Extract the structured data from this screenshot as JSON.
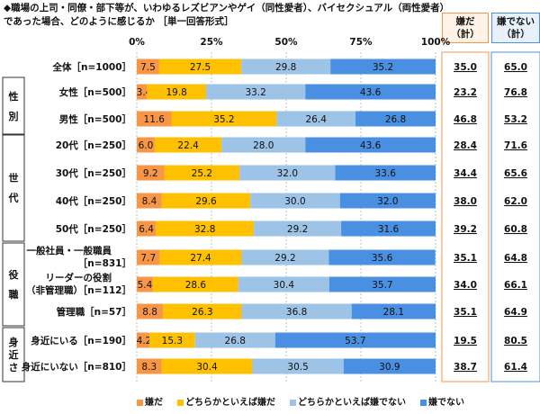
{
  "header": {
    "title_line1": "◆職場の上司・同僚・部下等が、いわゆるレズビアンやゲイ（同性愛者）、バイセクシュアル（両性愛者）",
    "title_line2": "であった場合、どのように感じるか ［単一回答形式］"
  },
  "columns": {
    "dislike_total": [
      "嫌だ",
      "（計）"
    ],
    "not_dislike_total": [
      "嫌でない",
      "（計）"
    ]
  },
  "colors": [
    "#f79646",
    "#ffc000",
    "#9dc3e6",
    "#4a90e2"
  ],
  "chart_data": {
    "type": "bar",
    "orientation": "horizontal",
    "stacked": true,
    "xlim": [
      0,
      100
    ],
    "ticks": [
      "0%",
      "25%",
      "50%",
      "75%",
      "100%"
    ],
    "series": [
      {
        "name": "嫌だ",
        "color": "#f79646"
      },
      {
        "name": "どちらかといえば嫌だ",
        "color": "#ffc000"
      },
      {
        "name": "どちらかといえば嫌でない",
        "color": "#9dc3e6"
      },
      {
        "name": "嫌でない",
        "color": "#4a90e2"
      }
    ],
    "groups": [
      {
        "label": "",
        "rows": [
          {
            "label": [
              "全体［n=1000］"
            ],
            "values": [
              7.5,
              27.5,
              29.8,
              35.2
            ],
            "dislike_total": "35.0",
            "not_dislike_total": "65.0"
          }
        ]
      },
      {
        "label": "性別",
        "rows": [
          {
            "label": [
              "女性［n=500］"
            ],
            "values": [
              3.4,
              19.8,
              33.2,
              43.6
            ],
            "dislike_total": "23.2",
            "not_dislike_total": "76.8"
          },
          {
            "label": [
              "男性［n=500］"
            ],
            "values": [
              11.6,
              35.2,
              26.4,
              26.8
            ],
            "dislike_total": "46.8",
            "not_dislike_total": "53.2"
          }
        ]
      },
      {
        "label": "世代",
        "rows": [
          {
            "label": [
              "20代［n=250］"
            ],
            "values": [
              6.0,
              22.4,
              28.0,
              43.6
            ],
            "dislike_total": "28.4",
            "not_dislike_total": "71.6"
          },
          {
            "label": [
              "30代［n=250］"
            ],
            "values": [
              9.2,
              25.2,
              32.0,
              33.6
            ],
            "dislike_total": "34.4",
            "not_dislike_total": "65.6"
          },
          {
            "label": [
              "40代［n=250］"
            ],
            "values": [
              8.4,
              29.6,
              30.0,
              32.0
            ],
            "dislike_total": "38.0",
            "not_dislike_total": "62.0"
          },
          {
            "label": [
              "50代［n=250］"
            ],
            "values": [
              6.4,
              32.8,
              29.2,
              31.6
            ],
            "dislike_total": "39.2",
            "not_dislike_total": "60.8"
          }
        ]
      },
      {
        "label": "役職",
        "rows": [
          {
            "label": [
              "一般社員・一般職員",
              "［n=831］"
            ],
            "values": [
              7.7,
              27.4,
              29.2,
              35.6
            ],
            "dislike_total": "35.1",
            "not_dislike_total": "64.8"
          },
          {
            "label": [
              "リーダーの役割",
              "（非管理職）［n=112］"
            ],
            "values": [
              5.4,
              28.6,
              30.4,
              35.7
            ],
            "dislike_total": "34.0",
            "not_dislike_total": "66.1"
          },
          {
            "label": [
              "管理職［n=57］"
            ],
            "values": [
              8.8,
              26.3,
              36.8,
              28.1
            ],
            "dislike_total": "35.1",
            "not_dislike_total": "64.9"
          }
        ]
      },
      {
        "label": "身近さ",
        "rows": [
          {
            "label": [
              "身近にいる［n=190］"
            ],
            "values": [
              4.2,
              15.3,
              26.8,
              53.7
            ],
            "dislike_total": "19.5",
            "not_dislike_total": "80.5"
          },
          {
            "label": [
              "身近にいない［n=810］"
            ],
            "values": [
              8.3,
              30.4,
              30.5,
              30.9
            ],
            "dislike_total": "38.7",
            "not_dislike_total": "61.4"
          }
        ]
      }
    ]
  }
}
